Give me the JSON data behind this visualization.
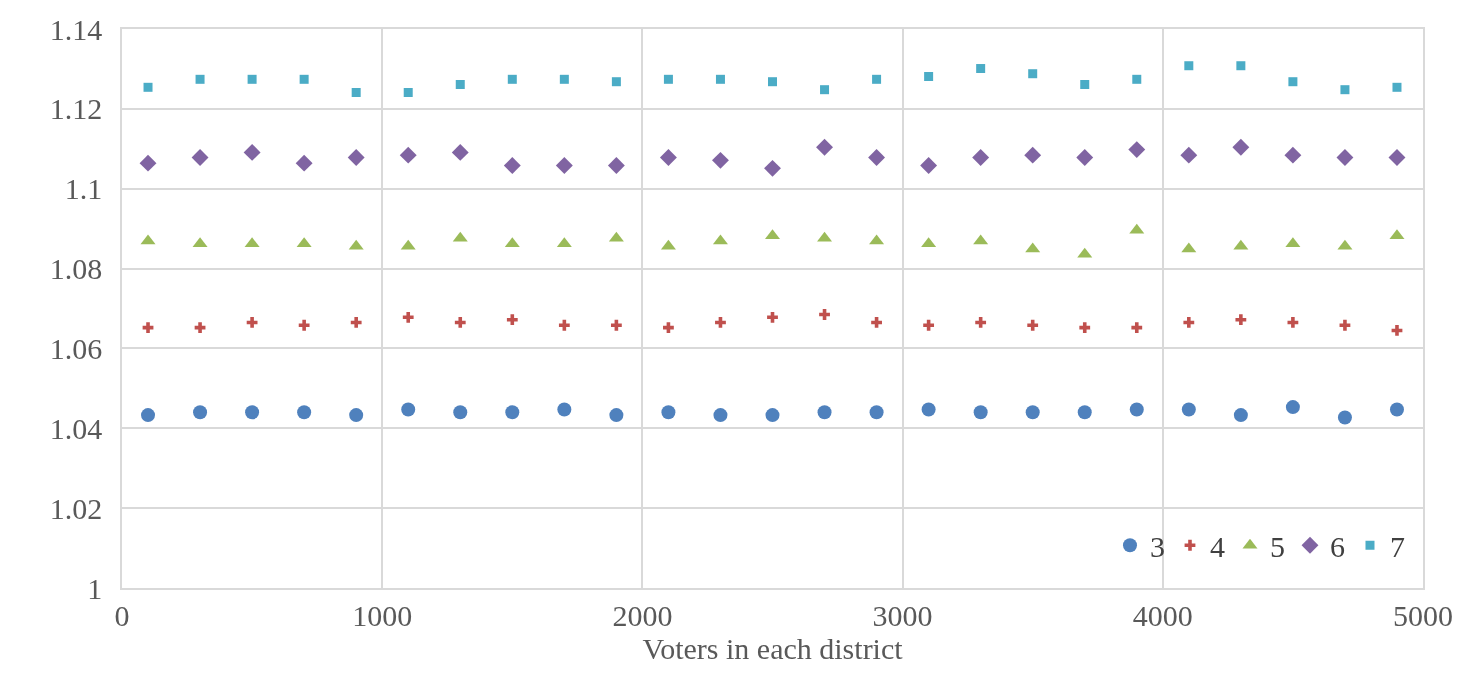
{
  "chart_data": {
    "type": "scatter",
    "xlabel": "Voters in each district",
    "x": [
      100,
      300,
      500,
      700,
      900,
      1100,
      1300,
      1500,
      1700,
      1900,
      2100,
      2300,
      2500,
      2700,
      2900,
      3100,
      3300,
      3500,
      3700,
      3900,
      4100,
      4300,
      4500,
      4700,
      4900
    ],
    "series": [
      {
        "name": "3",
        "color": "#4f81bd",
        "marker": "circle",
        "values": [
          1.0433,
          1.044,
          1.044,
          1.044,
          1.0433,
          1.0447,
          1.044,
          1.044,
          1.0447,
          1.0433,
          1.044,
          1.0433,
          1.0433,
          1.044,
          1.044,
          1.0447,
          1.044,
          1.044,
          1.044,
          1.0447,
          1.0447,
          1.0433,
          1.0453,
          1.0427,
          1.0447
        ]
      },
      {
        "name": "4",
        "color": "#c0504d",
        "marker": "cross",
        "values": [
          1.0652,
          1.0652,
          1.0665,
          1.0658,
          1.0665,
          1.0678,
          1.0665,
          1.0672,
          1.0658,
          1.0658,
          1.0652,
          1.0665,
          1.0678,
          1.0685,
          1.0665,
          1.0658,
          1.0665,
          1.0658,
          1.0652,
          1.0652,
          1.0665,
          1.0672,
          1.0665,
          1.0658,
          1.0645
        ]
      },
      {
        "name": "5",
        "color": "#9bbb59",
        "marker": "triangle",
        "values": [
          1.0869,
          1.0862,
          1.0862,
          1.0862,
          1.0856,
          1.0856,
          1.0876,
          1.0862,
          1.0862,
          1.0876,
          1.0856,
          1.0869,
          1.0882,
          1.0876,
          1.0869,
          1.0862,
          1.0869,
          1.0849,
          1.0836,
          1.0896,
          1.0849,
          1.0856,
          1.0862,
          1.0856,
          1.0882
        ]
      },
      {
        "name": "6",
        "color": "#8064a2",
        "marker": "diamond",
        "values": [
          1.1064,
          1.1078,
          1.1091,
          1.1064,
          1.1078,
          1.1084,
          1.1091,
          1.1058,
          1.1058,
          1.1058,
          1.1078,
          1.1071,
          1.1051,
          1.1104,
          1.1078,
          1.1058,
          1.1078,
          1.1084,
          1.1078,
          1.1098,
          1.1084,
          1.1104,
          1.1084,
          1.1078,
          1.1078
        ]
      },
      {
        "name": "7",
        "color": "#4bacc6",
        "marker": "square",
        "values": [
          1.1254,
          1.1274,
          1.1274,
          1.1274,
          1.1241,
          1.1241,
          1.1261,
          1.1274,
          1.1274,
          1.1268,
          1.1274,
          1.1274,
          1.1268,
          1.1248,
          1.1274,
          1.1281,
          1.1301,
          1.1288,
          1.1261,
          1.1274,
          1.1308,
          1.1308,
          1.1268,
          1.1248,
          1.1254
        ]
      }
    ],
    "xlim": [
      0,
      5000
    ],
    "xticks": [
      0,
      1000,
      2000,
      3000,
      4000,
      5000
    ],
    "ylim": [
      1,
      1.14
    ],
    "yticks": [
      1,
      1.02,
      1.04,
      1.06,
      1.08,
      1.1,
      1.12,
      1.14
    ],
    "grid": true,
    "legend": "bottom right"
  }
}
